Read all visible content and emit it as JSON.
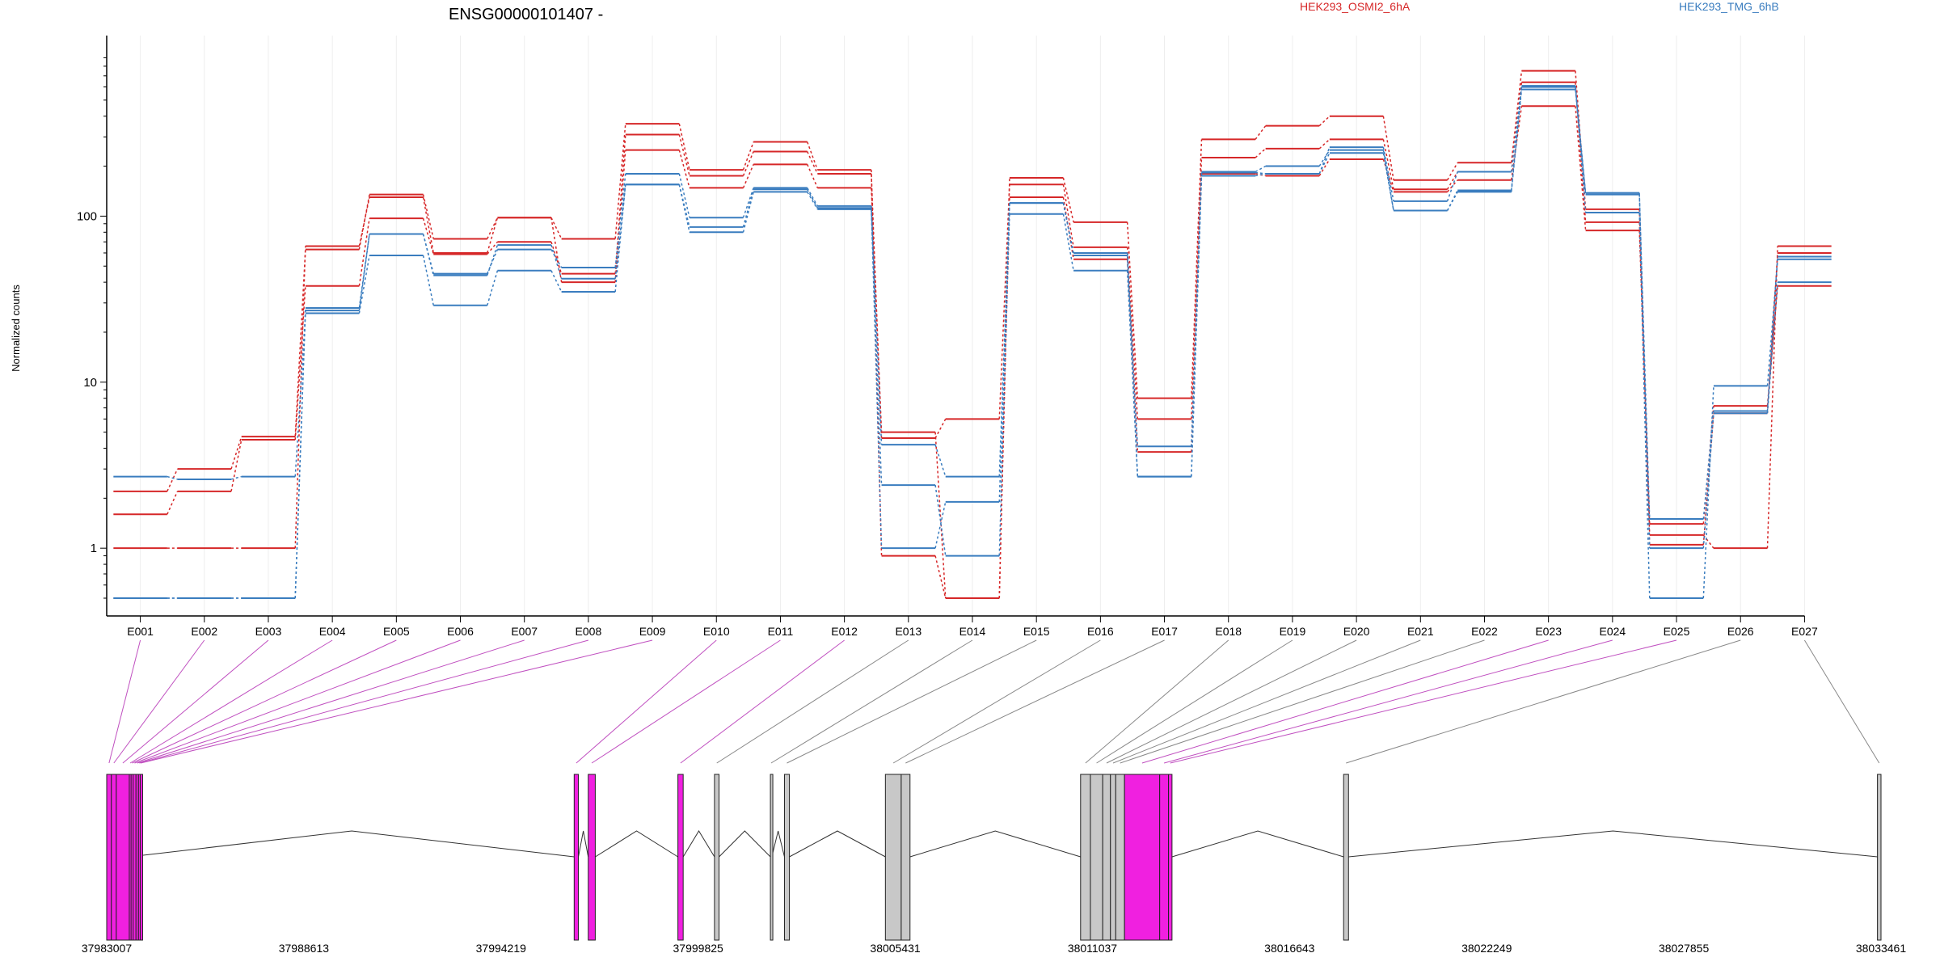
{
  "chart_data": {
    "type": "line",
    "title": "ENSG00000101407 -",
    "ylabel": "Normalized counts",
    "yscale": "log",
    "ylim": [
      0.5,
      1000
    ],
    "yticks": [
      1,
      10,
      100
    ],
    "ytick_labels": [
      "1",
      "10",
      "100"
    ],
    "categories": [
      "E001",
      "E002",
      "E003",
      "E004",
      "E005",
      "E006",
      "E007",
      "E008",
      "E009",
      "E010",
      "E011",
      "E012",
      "E013",
      "E014",
      "E015",
      "E016",
      "E017",
      "E018",
      "E019",
      "E020",
      "E021",
      "E022",
      "E023",
      "E024",
      "E025",
      "E026",
      "E027"
    ],
    "legend": [
      {
        "label": "HEK293_OSMI2_6hA",
        "color": "#d62728"
      },
      {
        "label": "HEK293_TMG_6hB",
        "color": "#3a7dbf"
      }
    ],
    "series": [
      {
        "group": "HEK293_OSMI2_6hA",
        "color": "#d62728",
        "values": [
          2.2,
          3,
          4.7,
          63,
          135,
          73,
          98,
          73,
          360,
          190,
          280,
          190,
          0.9,
          0.5,
          170,
          92,
          8,
          290,
          350,
          400,
          165,
          210,
          750,
          110,
          1.2,
          1,
          66
        ]
      },
      {
        "group": "HEK293_OSMI2_6hA",
        "color": "#d62728",
        "values": [
          1.6,
          2.2,
          4.5,
          38,
          97,
          59,
          70,
          45,
          310,
          175,
          245,
          180,
          4.6,
          6,
          155,
          65,
          6,
          225,
          255,
          290,
          145,
          185,
          640,
          92,
          1.05,
          6.5,
          60
        ]
      },
      {
        "group": "HEK293_OSMI2_6hA",
        "color": "#d62728",
        "values": [
          1,
          1,
          1,
          66,
          130,
          60,
          98,
          40,
          250,
          148,
          205,
          148,
          5,
          0.5,
          130,
          55,
          3.8,
          180,
          175,
          220,
          140,
          165,
          460,
          82,
          1.4,
          7.2,
          38
        ]
      },
      {
        "group": "HEK293_TMG_6hB",
        "color": "#3a7dbf",
        "values": [
          0.5,
          0.5,
          0.5,
          27,
          78,
          45,
          63,
          49,
          180,
          98,
          148,
          115,
          4.2,
          2.7,
          120,
          60,
          4.1,
          185,
          200,
          250,
          108,
          140,
          580,
          135,
          1.5,
          6.7,
          57
        ]
      },
      {
        "group": "HEK293_TMG_6hB",
        "color": "#3a7dbf",
        "values": [
          2.7,
          2.6,
          2.7,
          26,
          58,
          29,
          47,
          35,
          155,
          80,
          140,
          110,
          2.4,
          0.9,
          103,
          47,
          2.7,
          175,
          180,
          260,
          123,
          185,
          610,
          105,
          0.5,
          9.5,
          55
        ]
      },
      {
        "group": "HEK293_TMG_6hB",
        "color": "#3a7dbf",
        "values": [
          0.5,
          0.5,
          0.5,
          28,
          78,
          44,
          67,
          42,
          155,
          86,
          145,
          112,
          1,
          1.9,
          120,
          58,
          2.7,
          183,
          180,
          240,
          108,
          143,
          600,
          138,
          1,
          6.5,
          40
        ]
      }
    ],
    "gene_model": {
      "coordinate_range": [
        37983007,
        38033461
      ],
      "coordinate_ticks": [
        "37983007",
        "37988613",
        "37994219",
        "37999825",
        "38005431",
        "38011037",
        "38016643",
        "38022249",
        "38027855",
        "38033461"
      ],
      "exons": [
        {
          "id": "E001",
          "start": 37983007,
          "end": 37983140,
          "highlight": true
        },
        {
          "id": "E002",
          "start": 37983140,
          "end": 37983280,
          "highlight": true
        },
        {
          "id": "E003",
          "start": 37983280,
          "end": 37983650,
          "highlight": true
        },
        {
          "id": "E004",
          "start": 37983650,
          "end": 37983700,
          "highlight": true
        },
        {
          "id": "E005",
          "start": 37983700,
          "end": 37983760,
          "highlight": true
        },
        {
          "id": "E006",
          "start": 37983760,
          "end": 37983840,
          "highlight": true
        },
        {
          "id": "E007",
          "start": 37983840,
          "end": 37983910,
          "highlight": true
        },
        {
          "id": "E008",
          "start": 37983910,
          "end": 37983960,
          "highlight": true
        },
        {
          "id": "E009",
          "start": 37983960,
          "end": 37983990,
          "highlight": true
        },
        {
          "id": "E010",
          "start": 37996300,
          "end": 37996420,
          "highlight": true
        },
        {
          "id": "E011",
          "start": 37996700,
          "end": 37996900,
          "highlight": true
        },
        {
          "id": "E012",
          "start": 37999250,
          "end": 37999400,
          "highlight": true
        },
        {
          "id": "E013",
          "start": 38000290,
          "end": 38000420,
          "highlight": false
        },
        {
          "id": "E014",
          "start": 38001880,
          "end": 38001920,
          "highlight": false
        },
        {
          "id": "E015",
          "start": 38002280,
          "end": 38002420,
          "highlight": false
        },
        {
          "id": "E016",
          "start": 38005150,
          "end": 38005600,
          "highlight": false
        },
        {
          "id": "E017",
          "start": 38005600,
          "end": 38005850,
          "highlight": false
        },
        {
          "id": "E018",
          "start": 38010700,
          "end": 38010980,
          "highlight": false
        },
        {
          "id": "E019",
          "start": 38010980,
          "end": 38011330,
          "highlight": false
        },
        {
          "id": "E020",
          "start": 38011330,
          "end": 38011550,
          "highlight": false
        },
        {
          "id": "E021",
          "start": 38011550,
          "end": 38011700,
          "highlight": false
        },
        {
          "id": "E022",
          "start": 38011700,
          "end": 38011950,
          "highlight": false
        },
        {
          "id": "E023",
          "start": 38011950,
          "end": 38012950,
          "highlight": true
        },
        {
          "id": "E024",
          "start": 38012950,
          "end": 38013200,
          "highlight": true
        },
        {
          "id": "E025",
          "start": 38013200,
          "end": 38013300,
          "highlight": true
        },
        {
          "id": "E026",
          "start": 38018180,
          "end": 38018320,
          "highlight": false
        },
        {
          "id": "E027",
          "start": 38033360,
          "end": 38033461,
          "highlight": false
        }
      ],
      "introns": [
        [
          37983650,
          37996300
        ],
        [
          37996420,
          37996700
        ],
        [
          37996900,
          37999250
        ],
        [
          37999400,
          38000290
        ],
        [
          38000420,
          38001880
        ],
        [
          38001920,
          38002280
        ],
        [
          38002420,
          38005150
        ],
        [
          38005850,
          38010700
        ],
        [
          38013300,
          38018180
        ],
        [
          38018320,
          38033360
        ]
      ],
      "highlight_color": "#f020e0",
      "exon_color": "#c8c8c8"
    }
  }
}
